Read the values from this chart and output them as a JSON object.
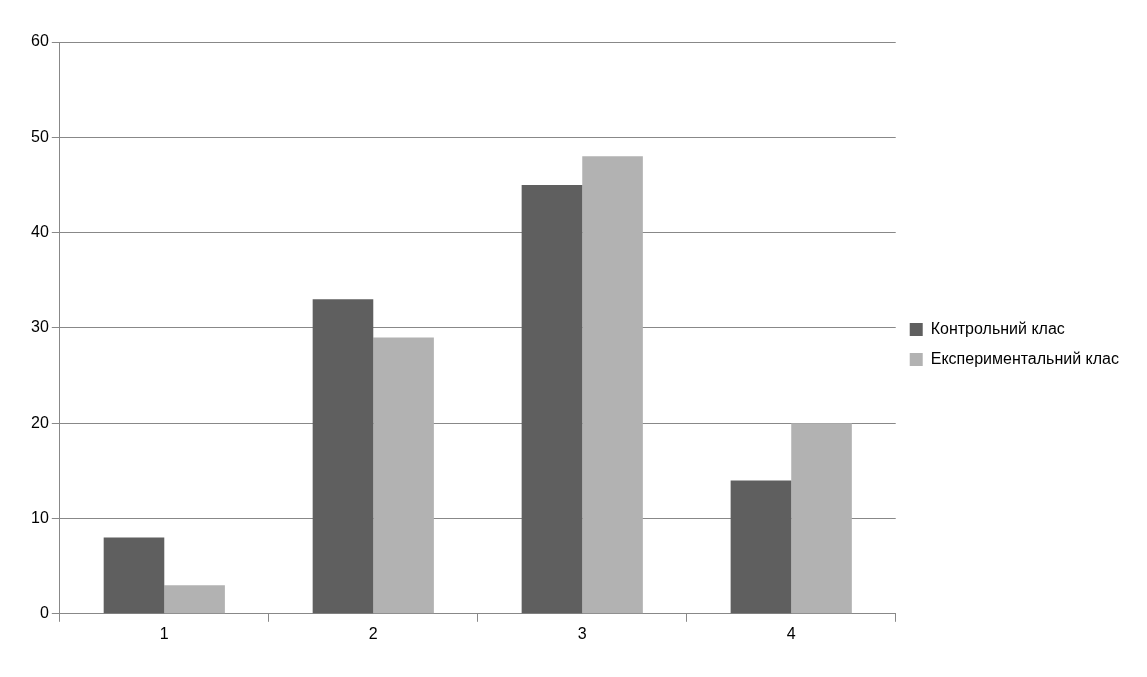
{
  "chart_data": {
    "type": "bar",
    "categories": [
      "1",
      "2",
      "3",
      "4"
    ],
    "series": [
      {
        "name": "Контрольний клас",
        "color": "#5f5f5f",
        "values": [
          8,
          33,
          45,
          14
        ]
      },
      {
        "name": "Експериментальний клас",
        "color": "#b2b2b2",
        "values": [
          3,
          29,
          48,
          20
        ]
      }
    ],
    "ylim": [
      0,
      60
    ],
    "yticks": [
      0,
      10,
      20,
      30,
      40,
      50,
      60
    ],
    "grid": "y",
    "legend": "right"
  }
}
